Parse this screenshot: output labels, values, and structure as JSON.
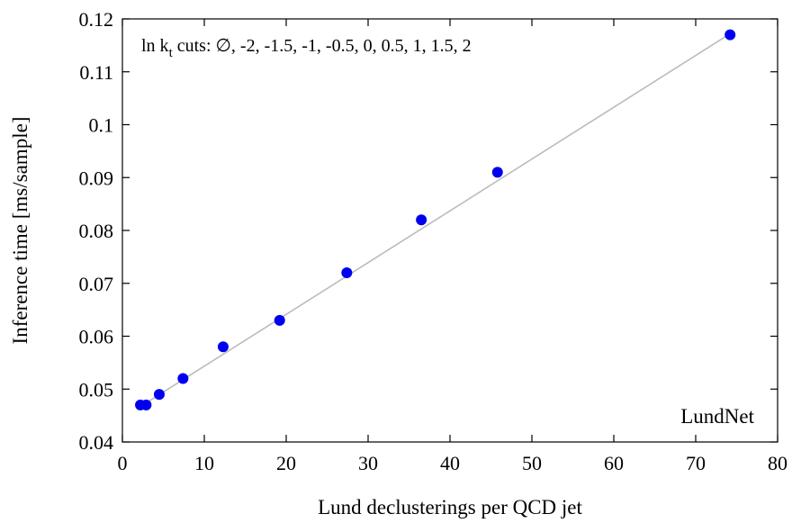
{
  "chart_data": {
    "type": "scatter",
    "xlabel": "Lund declusterings per QCD jet",
    "ylabel": "Inference time [ms/sample]",
    "xlim": [
      0,
      80
    ],
    "ylim": [
      0.04,
      0.12
    ],
    "x_ticks": [
      "0",
      "10",
      "20",
      "30",
      "40",
      "50",
      "60",
      "70",
      "80"
    ],
    "y_ticks": [
      "0.04",
      "0.05",
      "0.06",
      "0.07",
      "0.08",
      "0.09",
      "0.1",
      "0.11",
      "0.12"
    ],
    "grid": false,
    "annotation": {
      "prefix": "ln k",
      "subscript": "t",
      "suffix": " cuts: ∅, -2, -1.5, -1, -0.5, 0, 0.5, 1, 1.5, 2"
    },
    "label": "LundNet",
    "fit_line": {
      "color": "#bbbbbb",
      "x": [
        2,
        74.2
      ],
      "y": [
        0.0465,
        0.1172
      ]
    },
    "series": [
      {
        "color": "#0000ee",
        "points": [
          {
            "x": 2.2,
            "y": 0.047
          },
          {
            "x": 2.9,
            "y": 0.047
          },
          {
            "x": 4.5,
            "y": 0.049
          },
          {
            "x": 7.4,
            "y": 0.052
          },
          {
            "x": 12.3,
            "y": 0.058
          },
          {
            "x": 19.2,
            "y": 0.063
          },
          {
            "x": 27.4,
            "y": 0.072
          },
          {
            "x": 36.5,
            "y": 0.082
          },
          {
            "x": 45.8,
            "y": 0.091
          },
          {
            "x": 74.2,
            "y": 0.117
          }
        ]
      }
    ]
  }
}
